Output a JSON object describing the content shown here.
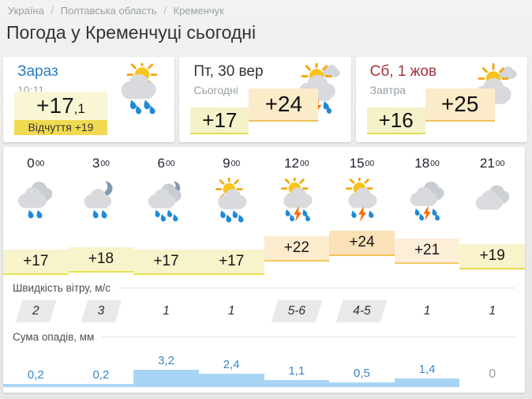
{
  "breadcrumb": {
    "items": [
      "Україна",
      "Полтавська область",
      "Кременчук"
    ],
    "separator": "/"
  },
  "title": "Погода у Кременчуці сьогодні",
  "cards": [
    {
      "label": "Зараз",
      "sublabel": "10:11",
      "temp": "+17",
      "temp_frac": ",1",
      "feels": "Відчуття +19",
      "icon": "sun-cloud-rain-big"
    },
    {
      "label": "Пт, 30 вер",
      "sublabel": "Сьогодні",
      "temp_low": "+17",
      "temp_high": "+24",
      "icon": "sun-clouds-storm-big"
    },
    {
      "label": "Сб, 1 жов",
      "sublabel": "Завтра",
      "temp_low": "+16",
      "temp_high": "+25",
      "icon": "sun-clouds-big"
    }
  ],
  "hourly": {
    "wind_label": "Швидкість вітру, м/с",
    "precip_label": "Сума опадів, мм",
    "hours": [
      {
        "time": "0",
        "sup": "00",
        "icon": "clouds-rain",
        "temp": "+17",
        "temp_value": 17,
        "band": "yellow",
        "wind": "2",
        "wind_badge": true,
        "precip": "0,2",
        "precip_value": 0.2
      },
      {
        "time": "3",
        "sup": "00",
        "icon": "moon-cloud-rain",
        "temp": "+18",
        "temp_value": 18,
        "band": "yellow",
        "wind": "3",
        "wind_badge": true,
        "precip": "0,2",
        "precip_value": 0.2
      },
      {
        "time": "6",
        "sup": "00",
        "icon": "moon-clouds-rain",
        "temp": "+17",
        "temp_value": 17,
        "band": "yellow",
        "wind": "1",
        "wind_badge": false,
        "precip": "3,2",
        "precip_value": 3.2
      },
      {
        "time": "9",
        "sup": "00",
        "icon": "sun-cloud-rain",
        "temp": "+17",
        "temp_value": 17,
        "band": "yellow",
        "wind": "1",
        "wind_badge": false,
        "precip": "2,4",
        "precip_value": 2.4
      },
      {
        "time": "12",
        "sup": "00",
        "icon": "sun-cloud-storm",
        "temp": "+22",
        "temp_value": 22,
        "band": "orange22",
        "wind": "5-6",
        "wind_badge": true,
        "precip": "1,1",
        "precip_value": 1.1
      },
      {
        "time": "15",
        "sup": "00",
        "icon": "sun-cloud-storm-light",
        "temp": "+24",
        "temp_value": 24,
        "band": "orange24",
        "wind": "4-5",
        "wind_badge": true,
        "precip": "0,5",
        "precip_value": 0.5
      },
      {
        "time": "18",
        "sup": "00",
        "icon": "clouds-storm",
        "temp": "+21",
        "temp_value": 21,
        "band": "orange21",
        "wind": "1",
        "wind_badge": false,
        "precip": "1,4",
        "precip_value": 1.4
      },
      {
        "time": "21",
        "sup": "00",
        "icon": "clouds",
        "temp": "+19",
        "temp_value": 19,
        "band": "yellow19",
        "wind": "1",
        "wind_badge": false,
        "precip": "0",
        "precip_value": 0
      }
    ]
  },
  "colors": {
    "accent_blue": "#2a7ec5",
    "accent_red": "#a2343c",
    "temp_yellow": "#f7f3cb",
    "temp_orange": "#fbe1b7",
    "feels_yellow": "#f1da52",
    "precip_bar_blue": "#a9d5f4",
    "precip_text_blue": "#3a86c6"
  }
}
